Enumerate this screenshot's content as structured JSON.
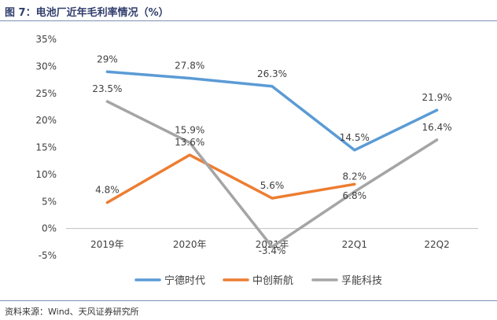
{
  "header": {
    "title": "图 7：电池厂近年毛利率情况（%）"
  },
  "footer": {
    "source": "资料来源：Wind、天风证券研究所"
  },
  "chart_data": {
    "type": "line",
    "title": "",
    "xlabel": "",
    "ylabel": "",
    "categories": [
      "2019年",
      "2020年",
      "2021年",
      "22Q1",
      "22Q2"
    ],
    "ylim": [
      -5,
      35
    ],
    "yticks": [
      "35%",
      "30%",
      "25%",
      "20%",
      "15%",
      "10%",
      "5%",
      "0%",
      "-5%"
    ],
    "ytick_values": [
      35,
      30,
      25,
      20,
      15,
      10,
      5,
      0,
      -5
    ],
    "grid": false,
    "legend_position": "bottom",
    "series": [
      {
        "name": "宁德时代",
        "color": "#5b9bd5",
        "values": [
          29,
          27.8,
          26.3,
          14.5,
          21.9
        ],
        "labels": [
          "29%",
          "27.8%",
          "26.3%",
          "14.5%",
          "21.9%"
        ]
      },
      {
        "name": "中创新航",
        "color": "#ed7d31",
        "values": [
          4.8,
          13.6,
          5.6,
          8.2,
          null
        ],
        "labels": [
          "4.8%",
          "13.6%",
          "5.6%",
          "8.2%",
          ""
        ]
      },
      {
        "name": "孚能科技",
        "color": "#a5a5a5",
        "values": [
          23.5,
          15.9,
          -3.4,
          6.8,
          16.4
        ],
        "labels": [
          "23.5%",
          "15.9%",
          "-3.4%",
          "6.8%",
          "16.4%"
        ]
      }
    ]
  }
}
